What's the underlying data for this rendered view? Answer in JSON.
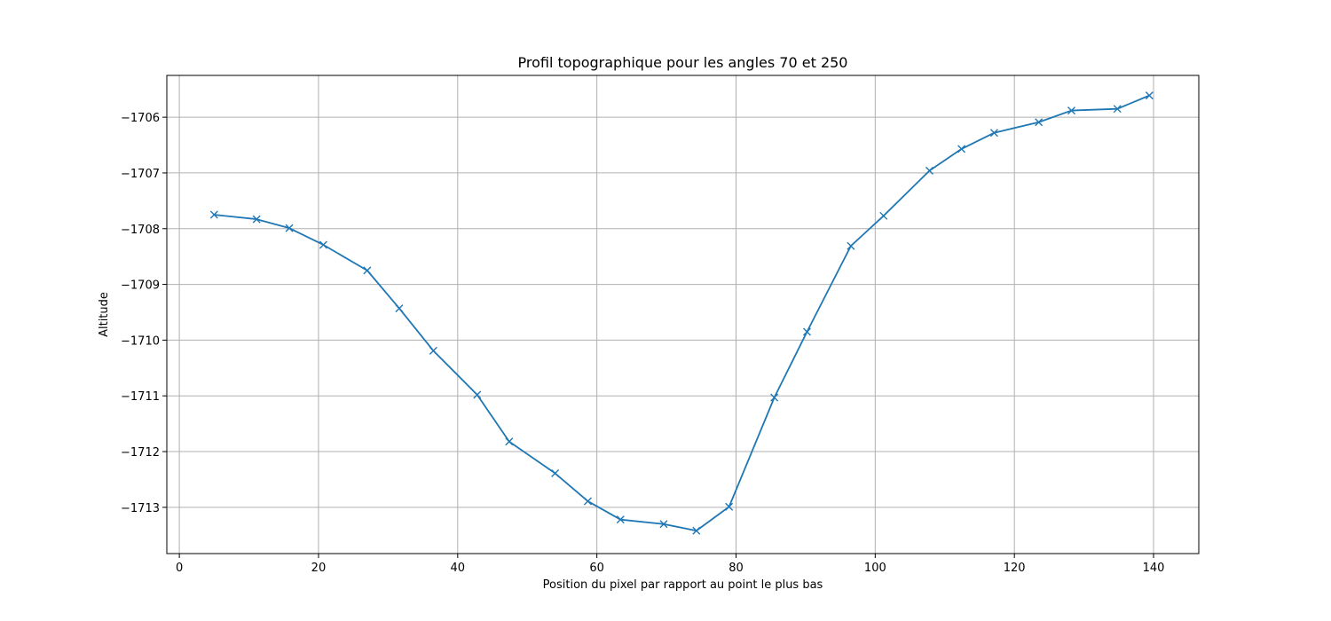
{
  "chart_data": {
    "type": "line",
    "title": "Profil topographique pour les angles 70 et 250",
    "xlabel": "Position du pixel par rapport au point le plus bas",
    "ylabel": "Altitude",
    "xlim": [
      -1.8,
      146.5
    ],
    "ylim": [
      -1713.83,
      -1705.25
    ],
    "xticks": [
      0,
      20,
      40,
      60,
      80,
      100,
      120,
      140
    ],
    "xtick_labels": [
      "0",
      "20",
      "40",
      "60",
      "80",
      "100",
      "120",
      "140"
    ],
    "yticks": [
      -1713,
      -1712,
      -1711,
      -1710,
      -1709,
      -1708,
      -1707,
      -1706
    ],
    "ytick_labels": [
      "−1713",
      "−1712",
      "−1711",
      "−1710",
      "−1709",
      "−1708",
      "−1707",
      "−1706"
    ],
    "grid": true,
    "marker": "x",
    "color": "#1f77b4",
    "series": [
      {
        "x": [
          5,
          11.1,
          15.8,
          20.7,
          27.0,
          31.6,
          36.5,
          42.8,
          47.4,
          54.0,
          58.7,
          63.4,
          69.6,
          74.3,
          79.0,
          85.5,
          90.2,
          96.5,
          101.2,
          107.8,
          112.4,
          117.1,
          123.5,
          128.2,
          134.8,
          139.4
        ],
        "y": [
          -1707.75,
          -1707.83,
          -1707.99,
          -1708.29,
          -1708.75,
          -1709.43,
          -1710.19,
          -1710.98,
          -1711.82,
          -1712.39,
          -1712.89,
          -1713.22,
          -1713.3,
          -1713.42,
          -1712.99,
          -1711.03,
          -1709.85,
          -1708.31,
          -1707.77,
          -1706.96,
          -1706.57,
          -1706.28,
          -1706.09,
          -1705.88,
          -1705.85,
          -1705.61
        ]
      }
    ]
  }
}
